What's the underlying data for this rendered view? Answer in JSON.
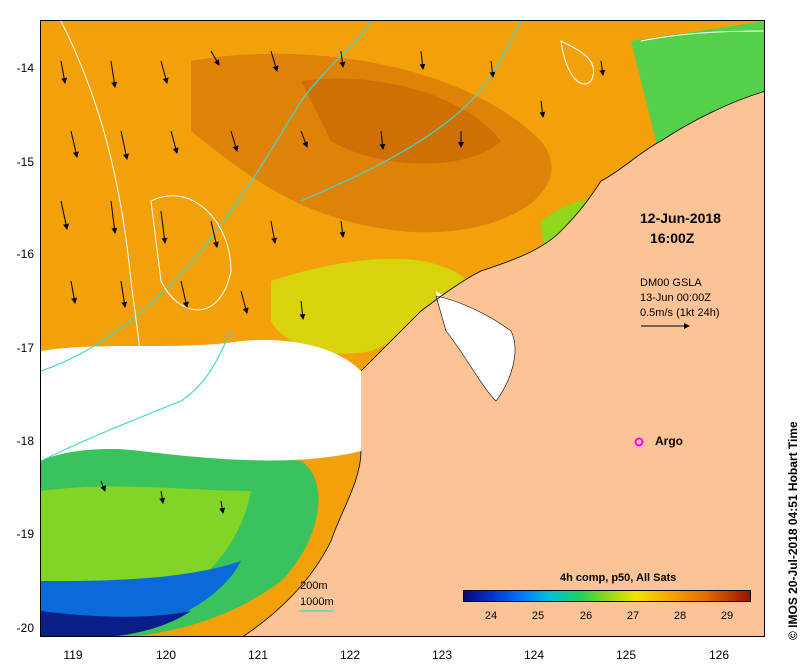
{
  "map": {
    "y_ticks": [
      "-14",
      "-15",
      "-16",
      "-17",
      "-18",
      "-19",
      "-20"
    ],
    "x_ticks": [
      "119",
      "120",
      "121",
      "122",
      "123",
      "124",
      "125",
      "126"
    ],
    "datetime_line1": "12-Jun-2018",
    "datetime_line2": "16:00Z",
    "gsla_title": "DM00 GSLA",
    "gsla_time": "13-Jun 00:00Z",
    "gsla_scale": "0.5m/s (1kt 24h)",
    "argo_label": "Argo",
    "legend_title": "4h comp, p50, All Sats",
    "colorbar_ticks": [
      "24",
      "25",
      "26",
      "27",
      "28",
      "29"
    ],
    "depth_200": "200m",
    "depth_1000": "1000m",
    "copyright": "© IMOS 20-Jul-2018 04:51 Hobart Time"
  },
  "colors": {
    "land": "#fcc496",
    "ocean_warm": "#f2a10a",
    "ocean_hot": "#d97806",
    "ocean_mid": "#e6d400",
    "cool_green": "#19c84c",
    "cyan_contour": "#40d8d0",
    "argo_marker": "#ff00ff"
  }
}
